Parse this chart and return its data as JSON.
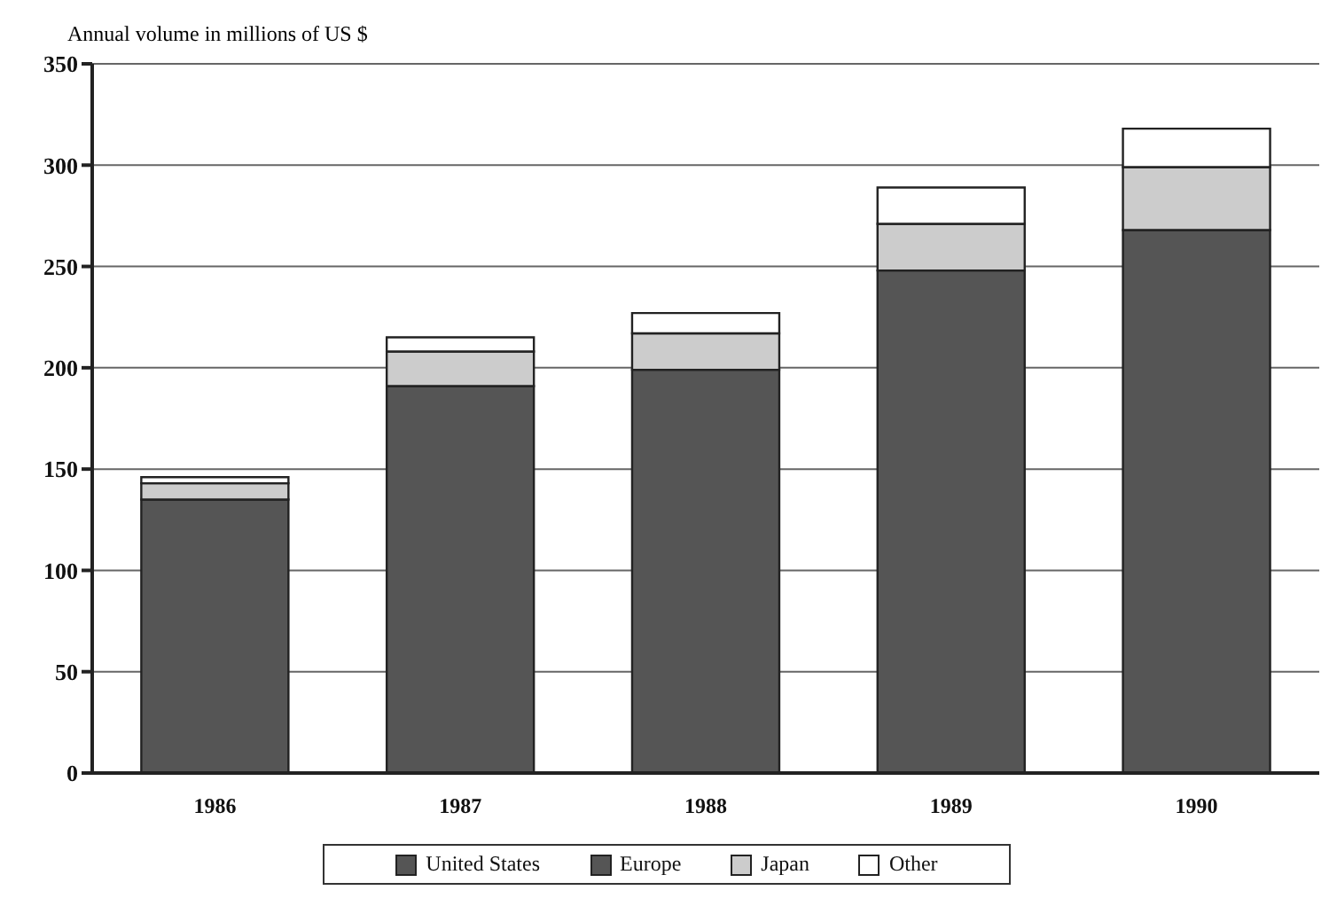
{
  "chart_data": {
    "type": "bar",
    "ylabel": "Annual volume in millions of US $",
    "categories": [
      "1986",
      "1987",
      "1988",
      "1989",
      "1990"
    ],
    "stacked": true,
    "series": [
      {
        "name": "United States",
        "color": "#555555",
        "values": [
          135,
          191,
          199,
          248,
          268
        ]
      },
      {
        "name": "Europe",
        "color": "#555555",
        "values": [
          null,
          null,
          null,
          null,
          null
        ]
      },
      {
        "name": "Japan",
        "color": "#cccccc",
        "values": [
          8,
          17,
          18,
          23,
          31
        ]
      },
      {
        "name": "Other",
        "color": "#ffffff",
        "values": [
          3,
          7,
          10,
          18,
          19
        ]
      }
    ],
    "ylim": [
      0,
      350
    ],
    "yticks": [
      0,
      50,
      100,
      150,
      200,
      250,
      300,
      350
    ],
    "grid": "y",
    "legend": "bottom"
  }
}
